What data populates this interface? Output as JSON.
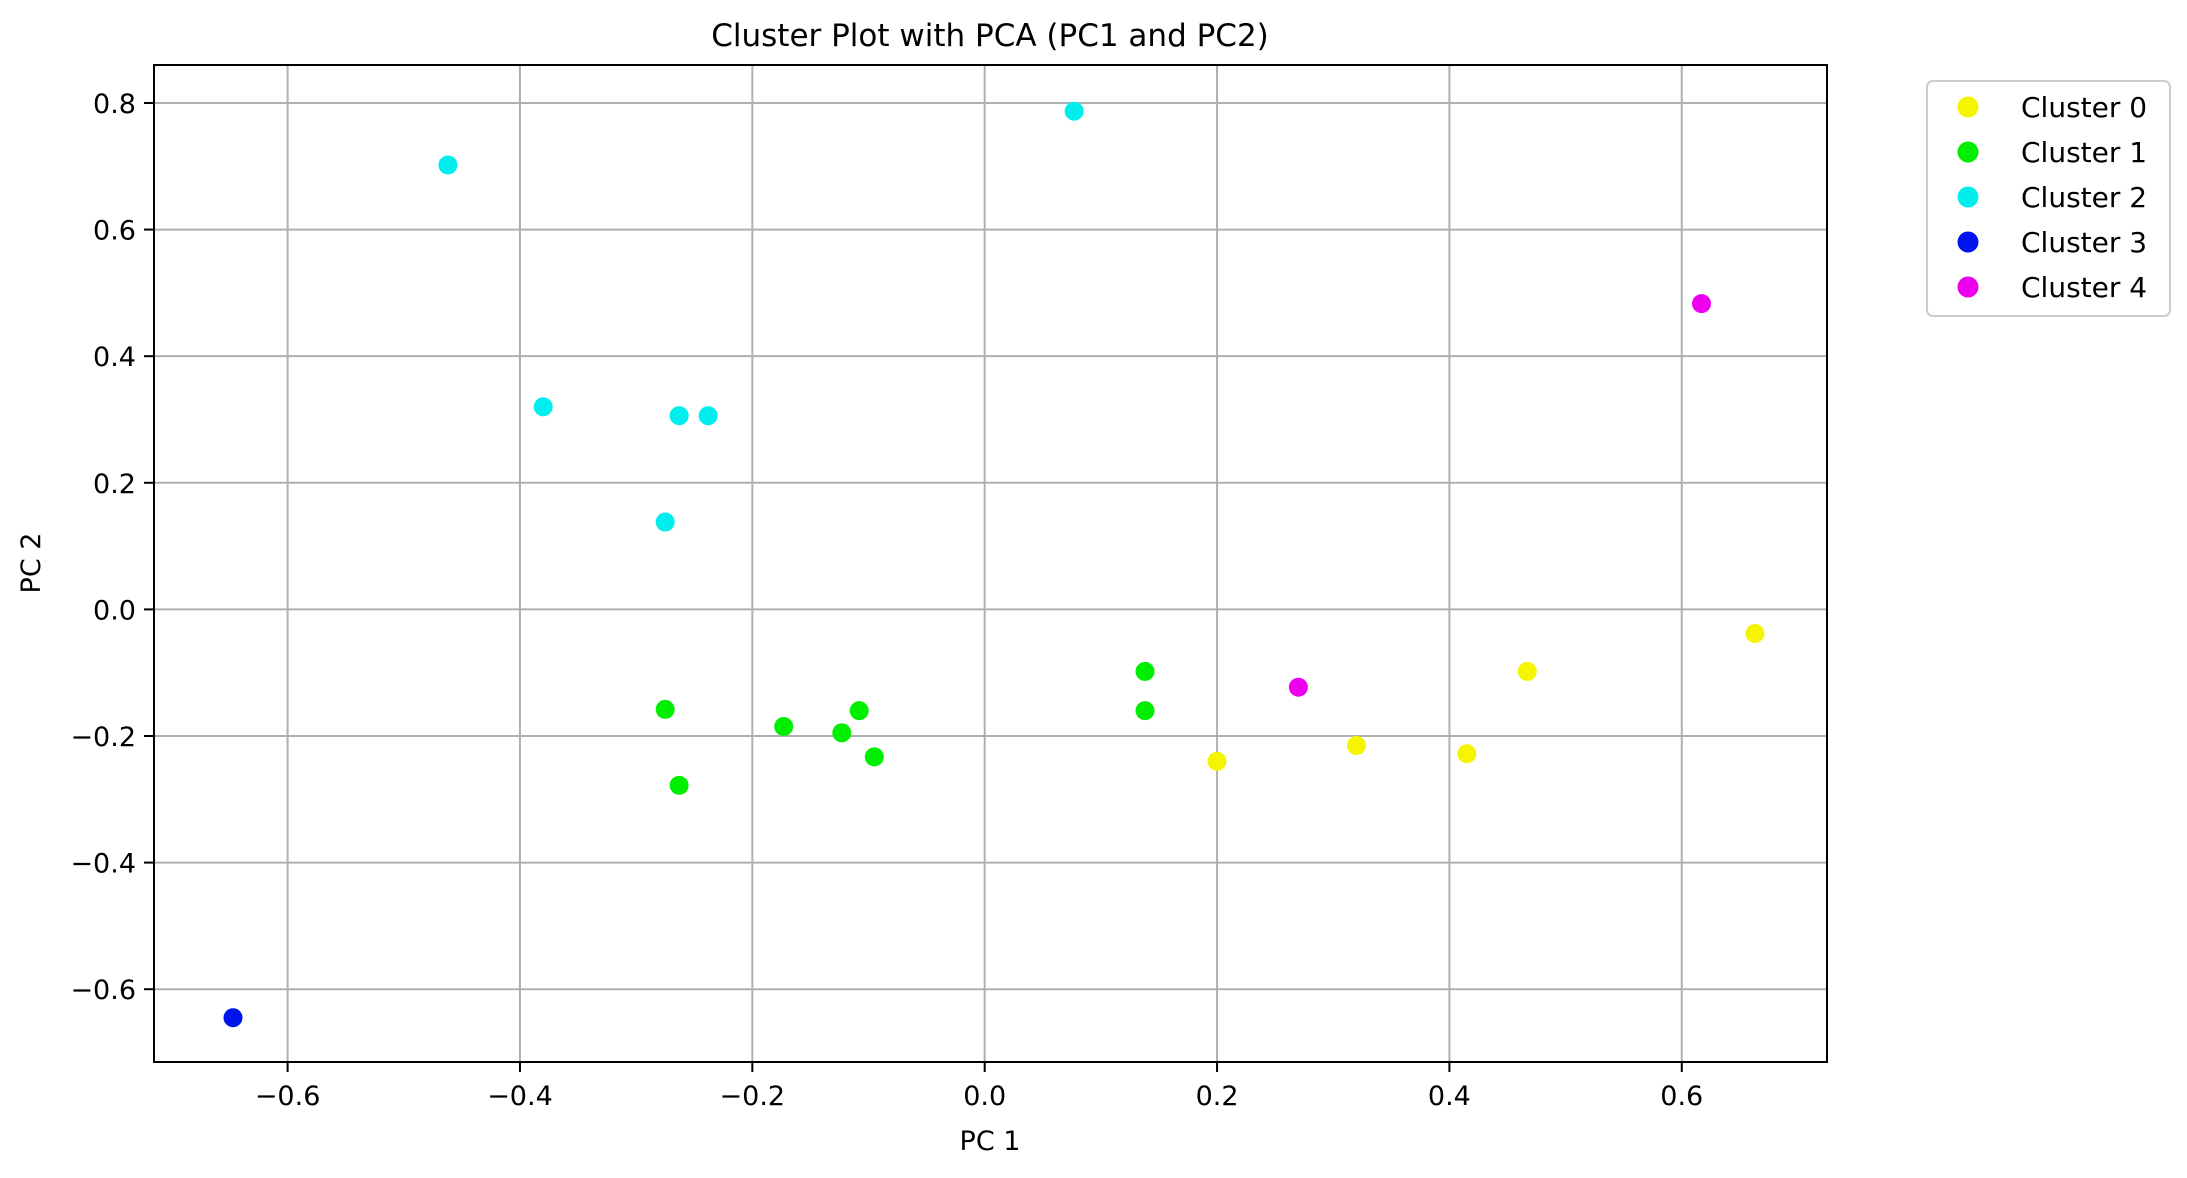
{
  "chart_data": {
    "type": "scatter",
    "title": "Cluster Plot with PCA (PC1 and PC2)",
    "xlabel": "PC 1",
    "ylabel": "PC 2",
    "xlim": [
      -0.715,
      0.725
    ],
    "ylim": [
      -0.715,
      0.86
    ],
    "xticks": [
      -0.6,
      -0.4,
      -0.2,
      0.0,
      0.2,
      0.4,
      0.6
    ],
    "xtick_labels": [
      "−0.6",
      "−0.4",
      "−0.2",
      "0.0",
      "0.2",
      "0.4",
      "0.6"
    ],
    "yticks": [
      -0.6,
      -0.4,
      -0.2,
      0.0,
      0.2,
      0.4,
      0.6,
      0.8
    ],
    "ytick_labels": [
      "−0.6",
      "−0.4",
      "−0.2",
      "0.0",
      "0.2",
      "0.4",
      "0.6",
      "0.8"
    ],
    "grid": true,
    "legend_position": "outside-top-right",
    "series": [
      {
        "name": "Cluster 0",
        "color": "#f5f500",
        "points": [
          [
            0.2,
            -0.24
          ],
          [
            0.32,
            -0.215
          ],
          [
            0.415,
            -0.228
          ],
          [
            0.467,
            -0.098
          ],
          [
            0.663,
            -0.038
          ]
        ]
      },
      {
        "name": "Cluster 1",
        "color": "#00ee00",
        "points": [
          [
            -0.275,
            -0.158
          ],
          [
            -0.263,
            -0.278
          ],
          [
            -0.173,
            -0.185
          ],
          [
            -0.123,
            -0.195
          ],
          [
            -0.108,
            -0.16
          ],
          [
            -0.095,
            -0.233
          ],
          [
            0.138,
            -0.098
          ],
          [
            0.138,
            -0.16
          ]
        ]
      },
      {
        "name": "Cluster 2",
        "color": "#00eeee",
        "points": [
          [
            -0.462,
            0.702
          ],
          [
            -0.38,
            0.32
          ],
          [
            -0.263,
            0.306
          ],
          [
            -0.238,
            0.306
          ],
          [
            -0.275,
            0.138
          ],
          [
            0.077,
            0.787
          ]
        ]
      },
      {
        "name": "Cluster 3",
        "color": "#0014ee",
        "points": [
          [
            -0.647,
            -0.645
          ]
        ]
      },
      {
        "name": "Cluster 4",
        "color": "#ee00ee",
        "points": [
          [
            0.27,
            -0.123
          ],
          [
            0.617,
            0.483
          ]
        ]
      }
    ]
  }
}
